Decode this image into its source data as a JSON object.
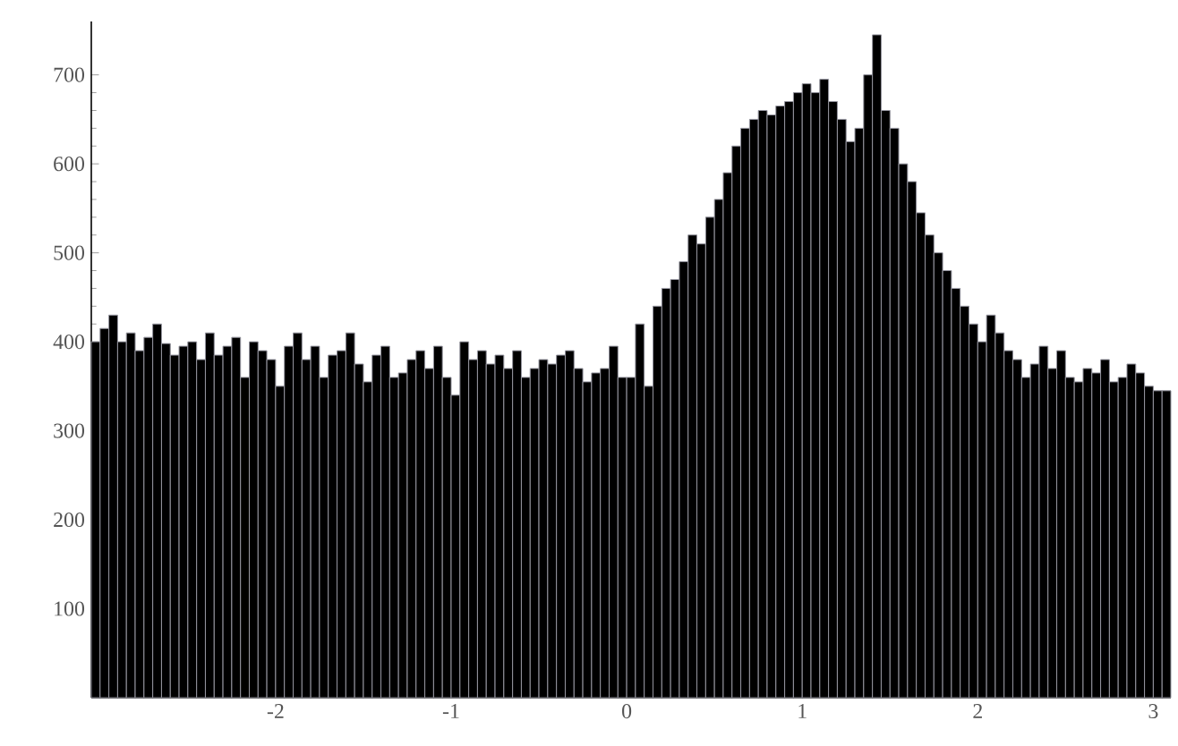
{
  "chart_data": {
    "type": "histogram",
    "color": "#000000",
    "bins": [
      -3.05,
      -3.0,
      -2.95,
      -2.9,
      -2.85,
      -2.8,
      -2.75,
      -2.7,
      -2.65,
      -2.6,
      -2.55,
      -2.5,
      -2.45,
      -2.4,
      -2.35,
      -2.3,
      -2.25,
      -2.2,
      -2.15,
      -2.1,
      -2.05,
      -2.0,
      -1.95,
      -1.9,
      -1.85,
      -1.8,
      -1.75,
      -1.7,
      -1.65,
      -1.6,
      -1.55,
      -1.5,
      -1.45,
      -1.4,
      -1.35,
      -1.3,
      -1.25,
      -1.2,
      -1.15,
      -1.1,
      -1.05,
      -1.0,
      -0.95,
      -0.9,
      -0.85,
      -0.8,
      -0.75,
      -0.7,
      -0.65,
      -0.6,
      -0.55,
      -0.5,
      -0.45,
      -0.4,
      -0.35,
      -0.3,
      -0.25,
      -0.2,
      -0.15,
      -0.1,
      -0.05,
      0.0,
      0.05,
      0.1,
      0.15,
      0.2,
      0.25,
      0.3,
      0.35,
      0.4,
      0.45,
      0.5,
      0.55,
      0.6,
      0.65,
      0.7,
      0.75,
      0.8,
      0.85,
      0.9,
      0.95,
      1.0,
      1.05,
      1.1,
      1.15,
      1.2,
      1.25,
      1.3,
      1.35,
      1.4,
      1.45,
      1.5,
      1.55,
      1.6,
      1.65,
      1.7,
      1.75,
      1.8,
      1.85,
      1.9,
      1.95,
      2.0,
      2.05,
      2.1,
      2.15,
      2.2,
      2.25,
      2.3,
      2.35,
      2.4,
      2.45,
      2.5,
      2.55,
      2.6,
      2.65,
      2.7,
      2.75,
      2.8,
      2.85,
      2.9,
      2.95,
      3.0,
      3.05,
      3.1
    ],
    "values": [
      400,
      415,
      430,
      400,
      410,
      390,
      405,
      420,
      398,
      385,
      395,
      400,
      380,
      410,
      385,
      395,
      405,
      360,
      400,
      390,
      380,
      350,
      395,
      410,
      380,
      395,
      360,
      385,
      390,
      410,
      375,
      355,
      385,
      395,
      360,
      365,
      380,
      390,
      370,
      395,
      360,
      340,
      400,
      380,
      390,
      375,
      385,
      370,
      390,
      360,
      370,
      380,
      375,
      385,
      390,
      370,
      355,
      365,
      370,
      395,
      360,
      360,
      420,
      350,
      440,
      460,
      470,
      490,
      520,
      510,
      540,
      560,
      590,
      620,
      640,
      650,
      660,
      655,
      665,
      670,
      680,
      690,
      680,
      695,
      670,
      650,
      625,
      640,
      700,
      745,
      660,
      640,
      600,
      580,
      545,
      520,
      500,
      480,
      460,
      440,
      420,
      400,
      430,
      410,
      390,
      380,
      360,
      375,
      395,
      370,
      390,
      360,
      355,
      370,
      365,
      380,
      355,
      360,
      375,
      365,
      350,
      345,
      345
    ],
    "xlim": [
      -3.05,
      3.1
    ],
    "ylim": [
      0,
      760
    ],
    "xticks": [
      -2,
      -1,
      0,
      1,
      2,
      3
    ],
    "yticks": [
      100,
      200,
      300,
      400,
      500,
      600,
      700
    ],
    "grid": false
  }
}
